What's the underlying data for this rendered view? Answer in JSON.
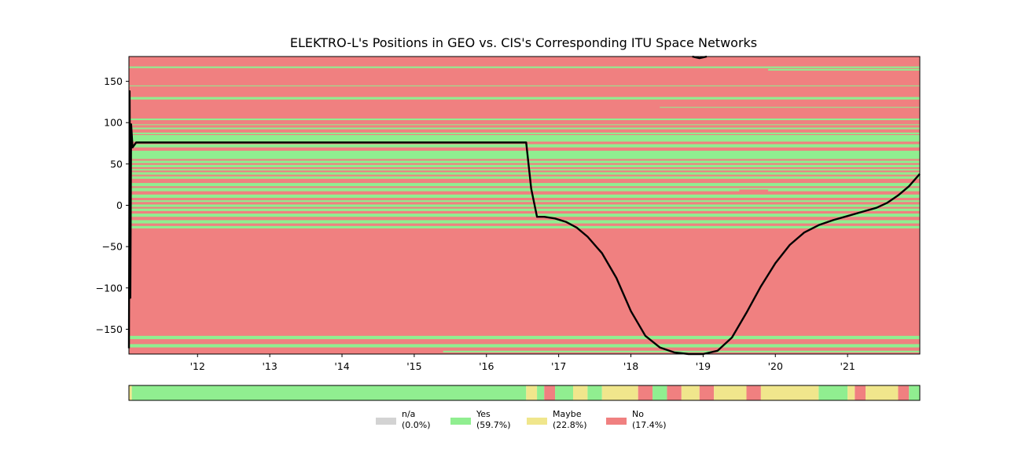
{
  "chart_data": {
    "type": "heatmap",
    "title": "ELEKTRO-L's Positions in GEO vs. CIS's Corresponding ITU Space Networks",
    "xlabel": "",
    "ylabel": "",
    "xlim": [
      2011.05,
      2022.0
    ],
    "ylim": [
      -180,
      180
    ],
    "grid": false,
    "x_ticks": [
      {
        "value": 2012,
        "label": "'12"
      },
      {
        "value": 2013,
        "label": "'13"
      },
      {
        "value": 2014,
        "label": "'14"
      },
      {
        "value": 2015,
        "label": "'15"
      },
      {
        "value": 2016,
        "label": "'16"
      },
      {
        "value": 2017,
        "label": "'17"
      },
      {
        "value": 2018,
        "label": "'18"
      },
      {
        "value": 2019,
        "label": "'19"
      },
      {
        "value": 2020,
        "label": "'20"
      },
      {
        "value": 2021,
        "label": "'21"
      }
    ],
    "y_ticks": [
      {
        "value": 150,
        "label": "150"
      },
      {
        "value": 100,
        "label": "100"
      },
      {
        "value": 50,
        "label": "50"
      },
      {
        "value": 0,
        "label": "0"
      },
      {
        "value": -50,
        "label": "−50"
      },
      {
        "value": -100,
        "label": "−100"
      },
      {
        "value": -150,
        "label": "−150"
      }
    ],
    "colors": {
      "na": "#d3d3d3",
      "yes": "#90ee90",
      "maybe": "#f0e68c",
      "no": "#f08080",
      "position_line": "#000000"
    },
    "heatmap_bands": [
      {
        "from": -180,
        "to": 180,
        "status": "no"
      },
      {
        "from": 166,
        "to": 168,
        "status": "yes"
      },
      {
        "from": 163,
        "to": 165,
        "status": "yes",
        "x_start": 2019.9
      },
      {
        "from": 144,
        "to": 145,
        "status": "yes"
      },
      {
        "from": 128,
        "to": 131,
        "status": "yes"
      },
      {
        "from": 118,
        "to": 119,
        "status": "yes",
        "x_start": 2018.4
      },
      {
        "from": 103,
        "to": 105,
        "status": "yes"
      },
      {
        "from": 97,
        "to": 98,
        "status": "yes"
      },
      {
        "from": 92,
        "to": 94,
        "status": "yes"
      },
      {
        "from": 86,
        "to": 88,
        "status": "yes"
      },
      {
        "from": 77,
        "to": 85,
        "status": "yes"
      },
      {
        "from": 70,
        "to": 74,
        "status": "yes"
      },
      {
        "from": 56,
        "to": 66,
        "status": "yes"
      },
      {
        "from": 51,
        "to": 54,
        "status": "yes"
      },
      {
        "from": 46,
        "to": 49,
        "status": "yes"
      },
      {
        "from": 42,
        "to": 44,
        "status": "yes"
      },
      {
        "from": 37,
        "to": 40,
        "status": "yes"
      },
      {
        "from": 32,
        "to": 35,
        "status": "yes"
      },
      {
        "from": 23,
        "to": 27,
        "status": "yes"
      },
      {
        "from": 17,
        "to": 21,
        "status": "yes"
      },
      {
        "from": 16,
        "to": 19,
        "status": "no",
        "x_start": 2019.5,
        "x_end": 2019.9
      },
      {
        "from": 9,
        "to": 13,
        "status": "yes"
      },
      {
        "from": 4,
        "to": 6,
        "status": "yes"
      },
      {
        "from": -2,
        "to": 1,
        "status": "yes"
      },
      {
        "from": -7,
        "to": -4,
        "status": "yes"
      },
      {
        "from": -14,
        "to": -10,
        "status": "yes"
      },
      {
        "from": -22,
        "to": -18,
        "status": "yes"
      },
      {
        "from": -28,
        "to": -25,
        "status": "yes"
      },
      {
        "from": -162,
        "to": -158,
        "status": "yes"
      },
      {
        "from": -172,
        "to": -168,
        "status": "yes"
      },
      {
        "from": -178,
        "to": -176,
        "status": "yes",
        "x_start": 2015.4
      }
    ],
    "series": [
      {
        "x": [
          2011.05,
          2011.06,
          2011.07,
          2011.08,
          2011.1,
          2011.15,
          2011.3,
          2011.6,
          2012.0,
          2012.5,
          2013.0,
          2013.5,
          2014.0,
          2014.5,
          2015.0,
          2015.5,
          2016.0,
          2016.3,
          2016.55,
          2016.62,
          2016.7,
          2016.8,
          2016.95,
          2017.1,
          2017.25,
          2017.4,
          2017.6,
          2017.8,
          2018.0,
          2018.2,
          2018.4,
          2018.6,
          2018.8,
          2019.0,
          2019.2,
          2019.4,
          2019.6,
          2019.8,
          2020.0,
          2020.2,
          2020.4,
          2020.6,
          2020.8,
          2021.0,
          2021.2,
          2021.4,
          2021.55,
          2021.7,
          2021.85,
          2022.0
        ],
        "y": [
          -173,
          138,
          -112,
          98,
          70,
          76,
          76,
          76,
          76,
          76,
          76,
          76,
          76,
          76,
          76,
          76,
          76,
          76,
          76,
          20,
          -14,
          -14,
          -16,
          -20,
          -27,
          -38,
          -58,
          -88,
          -128,
          -158,
          -172,
          -178,
          -180,
          -180,
          -176,
          -160,
          -130,
          -98,
          -70,
          -48,
          -33,
          -24,
          -18,
          -13,
          -8,
          -3,
          3,
          12,
          23,
          38
        ]
      },
      {
        "x": [
          2018.85,
          2018.9,
          2018.95,
          2019.0,
          2019.05
        ],
        "y": [
          180,
          179,
          178,
          179,
          180
        ]
      }
    ],
    "status_strip": [
      {
        "from": 2011.05,
        "to": 2011.09,
        "status": "maybe"
      },
      {
        "from": 2011.09,
        "to": 2016.55,
        "status": "yes"
      },
      {
        "from": 2016.55,
        "to": 2016.7,
        "status": "maybe"
      },
      {
        "from": 2016.7,
        "to": 2016.8,
        "status": "yes"
      },
      {
        "from": 2016.8,
        "to": 2016.95,
        "status": "no"
      },
      {
        "from": 2016.95,
        "to": 2017.2,
        "status": "yes"
      },
      {
        "from": 2017.2,
        "to": 2017.4,
        "status": "maybe"
      },
      {
        "from": 2017.4,
        "to": 2017.6,
        "status": "yes"
      },
      {
        "from": 2017.6,
        "to": 2018.1,
        "status": "maybe"
      },
      {
        "from": 2018.1,
        "to": 2018.3,
        "status": "no"
      },
      {
        "from": 2018.3,
        "to": 2018.5,
        "status": "yes"
      },
      {
        "from": 2018.5,
        "to": 2018.7,
        "status": "no"
      },
      {
        "from": 2018.7,
        "to": 2018.95,
        "status": "maybe"
      },
      {
        "from": 2018.95,
        "to": 2019.15,
        "status": "no"
      },
      {
        "from": 2019.15,
        "to": 2019.6,
        "status": "maybe"
      },
      {
        "from": 2019.6,
        "to": 2019.8,
        "status": "no"
      },
      {
        "from": 2019.8,
        "to": 2020.6,
        "status": "maybe"
      },
      {
        "from": 2020.6,
        "to": 2021.0,
        "status": "yes"
      },
      {
        "from": 2021.0,
        "to": 2021.1,
        "status": "maybe"
      },
      {
        "from": 2021.1,
        "to": 2021.25,
        "status": "no"
      },
      {
        "from": 2021.25,
        "to": 2021.7,
        "status": "maybe"
      },
      {
        "from": 2021.7,
        "to": 2021.85,
        "status": "no"
      },
      {
        "from": 2021.85,
        "to": 2022.0,
        "status": "yes"
      }
    ],
    "legend": {
      "placement": "bottom-center",
      "items": [
        {
          "key": "na",
          "name": "n/a",
          "share": "(0.0%)"
        },
        {
          "key": "yes",
          "name": "Yes",
          "share": "(59.7%)"
        },
        {
          "key": "maybe",
          "name": "Maybe",
          "share": "(22.8%)"
        },
        {
          "key": "no",
          "name": "No",
          "share": "(17.4%)"
        }
      ]
    }
  }
}
